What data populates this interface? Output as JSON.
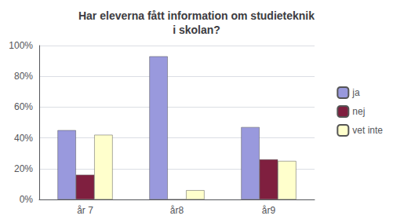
{
  "chart_data": {
    "type": "bar",
    "title": "Har eleverna fått information om studieteknik\ni skolan?",
    "categories": [
      "år 7",
      "år8",
      "år9"
    ],
    "series": [
      {
        "name": "ja",
        "color": "#9999dd",
        "values": [
          45,
          93,
          47
        ]
      },
      {
        "name": "nej",
        "color": "#7f1f3f",
        "values": [
          16,
          0,
          26
        ]
      },
      {
        "name": "vet inte",
        "color": "#ffffcc",
        "values": [
          42,
          6,
          25
        ]
      }
    ],
    "ylim": [
      0,
      100
    ],
    "yticks": [
      {
        "value": 0,
        "label": "0%"
      },
      {
        "value": 20,
        "label": "20%"
      },
      {
        "value": 40,
        "label": "40%"
      },
      {
        "value": 60,
        "label": "60%"
      },
      {
        "value": 80,
        "label": "80%"
      },
      {
        "value": 100,
        "label": "100%"
      }
    ],
    "grid": true,
    "legend": "right"
  }
}
